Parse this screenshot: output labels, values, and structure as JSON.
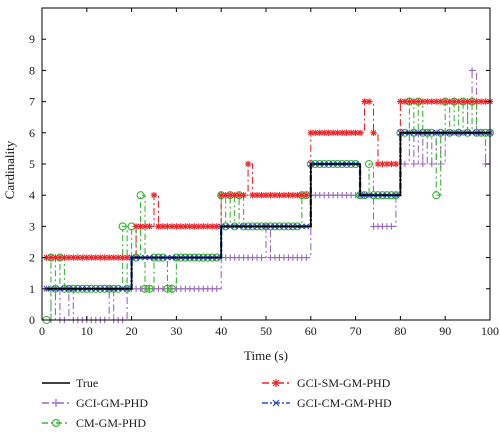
{
  "chart_data": {
    "type": "line",
    "xlabel": "Time (s)",
    "ylabel": "Cardinality",
    "xlim": [
      0,
      100
    ],
    "ylim": [
      0,
      10
    ],
    "xticks": [
      0,
      10,
      20,
      30,
      40,
      50,
      60,
      70,
      80,
      90,
      100
    ],
    "yticks": [
      0,
      1,
      2,
      3,
      4,
      5,
      6,
      7,
      8,
      9
    ],
    "grid": false,
    "legend_position": "bottom",
    "x": [
      1,
      2,
      3,
      4,
      5,
      6,
      7,
      8,
      9,
      10,
      11,
      12,
      13,
      14,
      15,
      16,
      17,
      18,
      19,
      20,
      21,
      22,
      23,
      24,
      25,
      26,
      27,
      28,
      29,
      30,
      31,
      32,
      33,
      34,
      35,
      36,
      37,
      38,
      39,
      40,
      41,
      42,
      43,
      44,
      45,
      46,
      47,
      48,
      49,
      50,
      51,
      52,
      53,
      54,
      55,
      56,
      57,
      58,
      59,
      60,
      61,
      62,
      63,
      64,
      65,
      66,
      67,
      68,
      69,
      70,
      71,
      72,
      73,
      74,
      75,
      76,
      77,
      78,
      79,
      80,
      81,
      82,
      83,
      84,
      85,
      86,
      87,
      88,
      89,
      90,
      91,
      92,
      93,
      94,
      95,
      96,
      97,
      98,
      99,
      100
    ],
    "series": [
      {
        "name": "True",
        "color": "#000000",
        "dash": "",
        "marker": "none",
        "values": [
          1,
          1,
          1,
          1,
          1,
          1,
          1,
          1,
          1,
          1,
          1,
          1,
          1,
          1,
          1,
          1,
          1,
          1,
          1,
          2,
          2,
          2,
          2,
          2,
          2,
          2,
          2,
          2,
          2,
          2,
          2,
          2,
          2,
          2,
          2,
          2,
          2,
          2,
          2,
          3,
          3,
          3,
          3,
          3,
          3,
          3,
          3,
          3,
          3,
          3,
          3,
          3,
          3,
          3,
          3,
          3,
          3,
          3,
          3,
          5,
          5,
          5,
          5,
          5,
          5,
          5,
          5,
          5,
          5,
          5,
          4,
          4,
          4,
          4,
          4,
          4,
          4,
          4,
          4,
          6,
          6,
          6,
          6,
          6,
          6,
          6,
          6,
          6,
          6,
          6,
          6,
          6,
          6,
          6,
          6,
          6,
          6,
          6,
          6,
          6
        ]
      },
      {
        "name": "GCI-SM-GM-PHD",
        "color": "#e8262b",
        "dash": "7,3,2,3",
        "marker": "star",
        "values": [
          2,
          2,
          2,
          2,
          2,
          2,
          2,
          2,
          2,
          2,
          2,
          2,
          2,
          2,
          2,
          2,
          2,
          2,
          2,
          2,
          3,
          3,
          3,
          3,
          4,
          3,
          3,
          3,
          3,
          3,
          3,
          3,
          3,
          3,
          3,
          3,
          3,
          3,
          3,
          4,
          4,
          4,
          4,
          4,
          4,
          5,
          4,
          4,
          4,
          4,
          4,
          4,
          4,
          4,
          4,
          4,
          4,
          4,
          4,
          6,
          6,
          6,
          6,
          6,
          6,
          6,
          6,
          6,
          6,
          6,
          6,
          7,
          7,
          6,
          5,
          5,
          5,
          5,
          5,
          7,
          7,
          7,
          7,
          7,
          7,
          7,
          7,
          7,
          7,
          7,
          7,
          7,
          7,
          7,
          7,
          7,
          7,
          7,
          7,
          7
        ]
      },
      {
        "name": "GCI-GM-PHD",
        "color": "#9b6ab8",
        "dash": "7,3,2,3",
        "marker": "plus",
        "values": [
          1,
          0,
          1,
          0,
          0,
          1,
          0,
          0,
          0,
          0,
          0,
          0,
          0,
          0,
          1,
          0,
          0,
          0,
          1,
          1,
          1,
          1,
          1,
          1,
          1,
          1,
          1,
          1,
          1,
          1,
          1,
          1,
          1,
          1,
          1,
          1,
          1,
          1,
          1,
          2,
          2,
          2,
          2,
          2,
          2,
          2,
          2,
          2,
          2,
          3,
          2,
          2,
          2,
          2,
          2,
          2,
          2,
          2,
          2,
          4,
          4,
          4,
          4,
          4,
          4,
          4,
          4,
          4,
          4,
          4,
          4,
          4,
          4,
          3,
          3,
          3,
          3,
          3,
          4,
          5,
          5,
          6,
          5,
          6,
          5,
          6,
          5,
          6,
          5,
          6,
          6,
          6,
          6,
          6,
          7,
          8,
          6,
          6,
          5,
          6
        ]
      },
      {
        "name": "GCI-CM-GM-PHD",
        "color": "#2a54b5",
        "dash": "6,2,2,2",
        "marker": "x",
        "values": [
          1,
          1,
          1,
          1,
          1,
          1,
          1,
          1,
          1,
          1,
          1,
          1,
          1,
          1,
          1,
          1,
          1,
          1,
          1,
          2,
          2,
          2,
          2,
          2,
          2,
          2,
          2,
          2,
          2,
          2,
          2,
          2,
          2,
          2,
          2,
          2,
          2,
          2,
          2,
          3,
          3,
          3,
          3,
          3,
          3,
          3,
          3,
          3,
          3,
          3,
          3,
          3,
          3,
          3,
          3,
          3,
          3,
          3,
          3,
          5,
          5,
          5,
          5,
          5,
          5,
          5,
          5,
          5,
          5,
          5,
          4,
          4,
          4,
          4,
          4,
          4,
          4,
          4,
          4,
          6,
          6,
          6,
          6,
          6,
          6,
          6,
          6,
          6,
          6,
          6,
          6,
          6,
          6,
          6,
          6,
          6,
          6,
          6,
          6,
          6
        ]
      },
      {
        "name": "CM-GM-PHD",
        "color": "#3fb23a",
        "dash": "6,3,2,3",
        "marker": "circle",
        "values": [
          0,
          2,
          1,
          2,
          1,
          1,
          1,
          1,
          1,
          1,
          1,
          1,
          1,
          1,
          1,
          1,
          1,
          3,
          1,
          3,
          2,
          4,
          1,
          1,
          2,
          2,
          2,
          1,
          1,
          2,
          2,
          2,
          2,
          2,
          2,
          2,
          2,
          2,
          2,
          4,
          3,
          4,
          3,
          4,
          3,
          3,
          3,
          3,
          3,
          3,
          3,
          3,
          3,
          3,
          3,
          3,
          3,
          4,
          4,
          5,
          5,
          5,
          5,
          5,
          5,
          5,
          5,
          5,
          5,
          5,
          4,
          4,
          5,
          4,
          4,
          4,
          4,
          4,
          4,
          6,
          6,
          7,
          6,
          7,
          6,
          6,
          6,
          4,
          6,
          7,
          6,
          7,
          6,
          7,
          6,
          7,
          6,
          6,
          6,
          6
        ]
      }
    ]
  },
  "legend": [
    {
      "label": "True"
    },
    {
      "label": "GCI-SM-GM-PHD"
    },
    {
      "label": "GCI-GM-PHD"
    },
    {
      "label": "GCI-CM-GM-PHD"
    },
    {
      "label": "CM-GM-PHD"
    }
  ]
}
